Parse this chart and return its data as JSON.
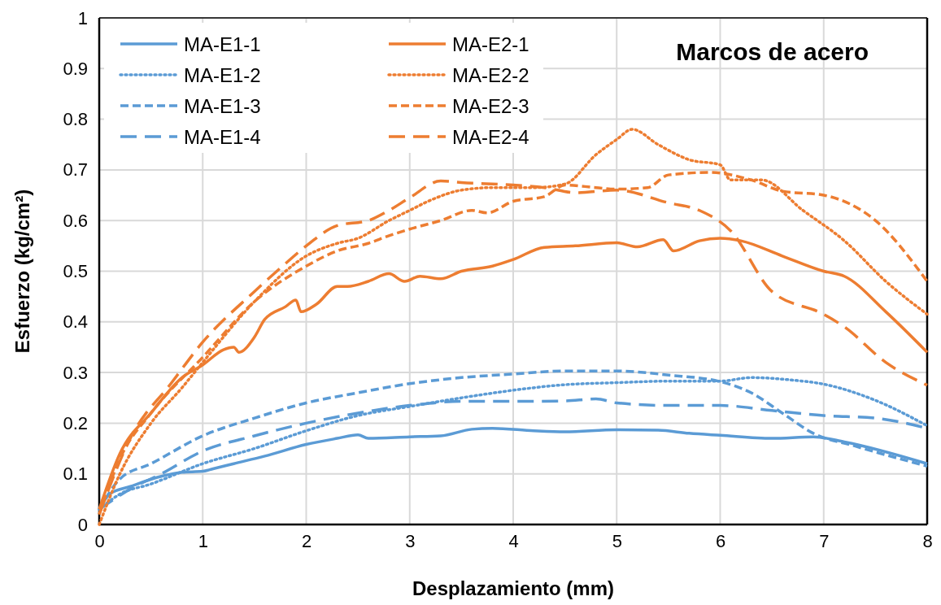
{
  "chart_data": {
    "type": "line",
    "title": "Marcos de acero",
    "xlabel": "Desplazamiento (mm)",
    "ylabel": "Esfuerzo (kg/cm²)",
    "xlim": [
      0,
      8
    ],
    "xticks": [
      0,
      1,
      2,
      3,
      4,
      5,
      6,
      7,
      8
    ],
    "ylim": [
      0,
      1
    ],
    "yticks": [
      0,
      0.1,
      0.2,
      0.3,
      0.4,
      0.5,
      0.6,
      0.7,
      0.8,
      0.9,
      1
    ],
    "grid": true,
    "legend": "top left",
    "marker": "none",
    "series": [
      {
        "name": "MA-E1-1",
        "color": "#5b9bd5",
        "line_style": "solid",
        "x": [
          0,
          0.1,
          0.3,
          0.6,
          0.8,
          1,
          1.1,
          1.3,
          1.6,
          2,
          2.3,
          2.5,
          2.6,
          3,
          3.3,
          3.6,
          3.8,
          4.2,
          4.5,
          5,
          5.4,
          5.7,
          6,
          6.5,
          6.9,
          7.2,
          8
        ],
        "values": [
          0.03,
          0.06,
          0.075,
          0.095,
          0.103,
          0.105,
          0.11,
          0.12,
          0.135,
          0.158,
          0.17,
          0.177,
          0.17,
          0.173,
          0.175,
          0.188,
          0.19,
          0.185,
          0.183,
          0.187,
          0.186,
          0.18,
          0.176,
          0.17,
          0.173,
          0.163,
          0.12
        ]
      },
      {
        "name": "MA-E1-2",
        "color": "#5b9bd5",
        "line_style": "dotted",
        "x": [
          0,
          0.2,
          0.5,
          1,
          1.5,
          2,
          2.5,
          3,
          3.5,
          4,
          4.5,
          5,
          5.5,
          6,
          6.3,
          6.7,
          7,
          7.5,
          8
        ],
        "values": [
          0.03,
          0.06,
          0.08,
          0.12,
          0.15,
          0.185,
          0.215,
          0.233,
          0.25,
          0.265,
          0.276,
          0.28,
          0.283,
          0.283,
          0.29,
          0.285,
          0.277,
          0.245,
          0.195
        ]
      },
      {
        "name": "MA-E1-3",
        "color": "#5b9bd5",
        "line_style": "dashed",
        "x": [
          0,
          0.2,
          0.5,
          1,
          1.5,
          2,
          2.5,
          3,
          3.5,
          4,
          4.5,
          5,
          5.5,
          6,
          6.3,
          6.6,
          6.9,
          7.3,
          8
        ],
        "values": [
          0.03,
          0.09,
          0.12,
          0.175,
          0.21,
          0.24,
          0.26,
          0.278,
          0.29,
          0.297,
          0.303,
          0.303,
          0.295,
          0.282,
          0.26,
          0.22,
          0.18,
          0.155,
          0.115
        ]
      },
      {
        "name": "MA-E1-4",
        "color": "#5b9bd5",
        "line_style": "longdash",
        "x": [
          0,
          0.3,
          0.6,
          1,
          1.5,
          2,
          2.5,
          3,
          3.5,
          4,
          4.5,
          4.8,
          5,
          5.5,
          6,
          6.5,
          7,
          7.5,
          8
        ],
        "values": [
          0.03,
          0.07,
          0.1,
          0.145,
          0.175,
          0.2,
          0.22,
          0.235,
          0.243,
          0.243,
          0.244,
          0.248,
          0.24,
          0.235,
          0.235,
          0.225,
          0.215,
          0.21,
          0.19
        ]
      },
      {
        "name": "MA-E2-1",
        "color": "#ed7d31",
        "line_style": "solid",
        "x": [
          0,
          0.2,
          0.5,
          0.8,
          1,
          1.2,
          1.3,
          1.35,
          1.5,
          1.6,
          1.8,
          1.9,
          1.95,
          2.1,
          2.3,
          2.4,
          2.6,
          2.8,
          2.95,
          3.1,
          3.3,
          3.5,
          3.8,
          4,
          4.3,
          4.6,
          5,
          5.2,
          5.45,
          5.55,
          5.8,
          6,
          6.2,
          6.6,
          7,
          7.2,
          7.6,
          8
        ],
        "values": [
          0.03,
          0.14,
          0.22,
          0.29,
          0.315,
          0.345,
          0.35,
          0.34,
          0.37,
          0.405,
          0.43,
          0.443,
          0.42,
          0.435,
          0.47,
          0.47,
          0.48,
          0.495,
          0.48,
          0.49,
          0.485,
          0.5,
          0.51,
          0.523,
          0.547,
          0.55,
          0.556,
          0.548,
          0.562,
          0.54,
          0.56,
          0.565,
          0.56,
          0.53,
          0.5,
          0.49,
          0.42,
          0.34
        ]
      },
      {
        "name": "MA-E2-2",
        "color": "#ed7d31",
        "line_style": "dotted",
        "x": [
          0,
          0.2,
          0.5,
          0.8,
          1,
          1.5,
          2,
          2.3,
          2.5,
          2.8,
          3,
          3.2,
          3.5,
          3.8,
          4.2,
          4.5,
          4.8,
          5,
          5.15,
          5.4,
          5.7,
          6,
          6.1,
          6.4,
          6.8,
          7.2,
          7.6,
          8
        ],
        "values": [
          0,
          0.1,
          0.2,
          0.27,
          0.32,
          0.44,
          0.53,
          0.555,
          0.565,
          0.6,
          0.62,
          0.64,
          0.66,
          0.665,
          0.665,
          0.672,
          0.73,
          0.76,
          0.78,
          0.75,
          0.72,
          0.71,
          0.68,
          0.68,
          0.62,
          0.56,
          0.48,
          0.415
        ]
      },
      {
        "name": "MA-E2-3",
        "color": "#ed7d31",
        "line_style": "dashed",
        "x": [
          0,
          0.2,
          0.5,
          1,
          1.5,
          2,
          2.3,
          2.6,
          2.8,
          3,
          3.3,
          3.6,
          3.75,
          4,
          4.3,
          4.5,
          4.8,
          5,
          5.3,
          5.5,
          5.9,
          6.3,
          6.6,
          7,
          7.5,
          8
        ],
        "values": [
          0.02,
          0.13,
          0.22,
          0.33,
          0.44,
          0.51,
          0.54,
          0.555,
          0.57,
          0.583,
          0.6,
          0.62,
          0.615,
          0.638,
          0.647,
          0.67,
          0.665,
          0.662,
          0.665,
          0.69,
          0.695,
          0.68,
          0.658,
          0.65,
          0.6,
          0.48
        ]
      },
      {
        "name": "MA-E2-4",
        "color": "#ed7d31",
        "line_style": "longdash",
        "x": [
          0,
          0.3,
          0.7,
          1,
          1.5,
          1.8,
          2,
          2.3,
          2.6,
          2.8,
          3,
          3.3,
          3.5,
          4,
          4.3,
          4.6,
          5,
          5.5,
          5.8,
          6.1,
          6.5,
          7,
          7.2,
          7.6,
          8
        ],
        "values": [
          0.02,
          0.17,
          0.28,
          0.36,
          0.46,
          0.515,
          0.55,
          0.59,
          0.6,
          0.62,
          0.645,
          0.678,
          0.675,
          0.67,
          0.665,
          0.655,
          0.66,
          0.635,
          0.62,
          0.58,
          0.46,
          0.415,
          0.39,
          0.32,
          0.275
        ]
      }
    ]
  }
}
